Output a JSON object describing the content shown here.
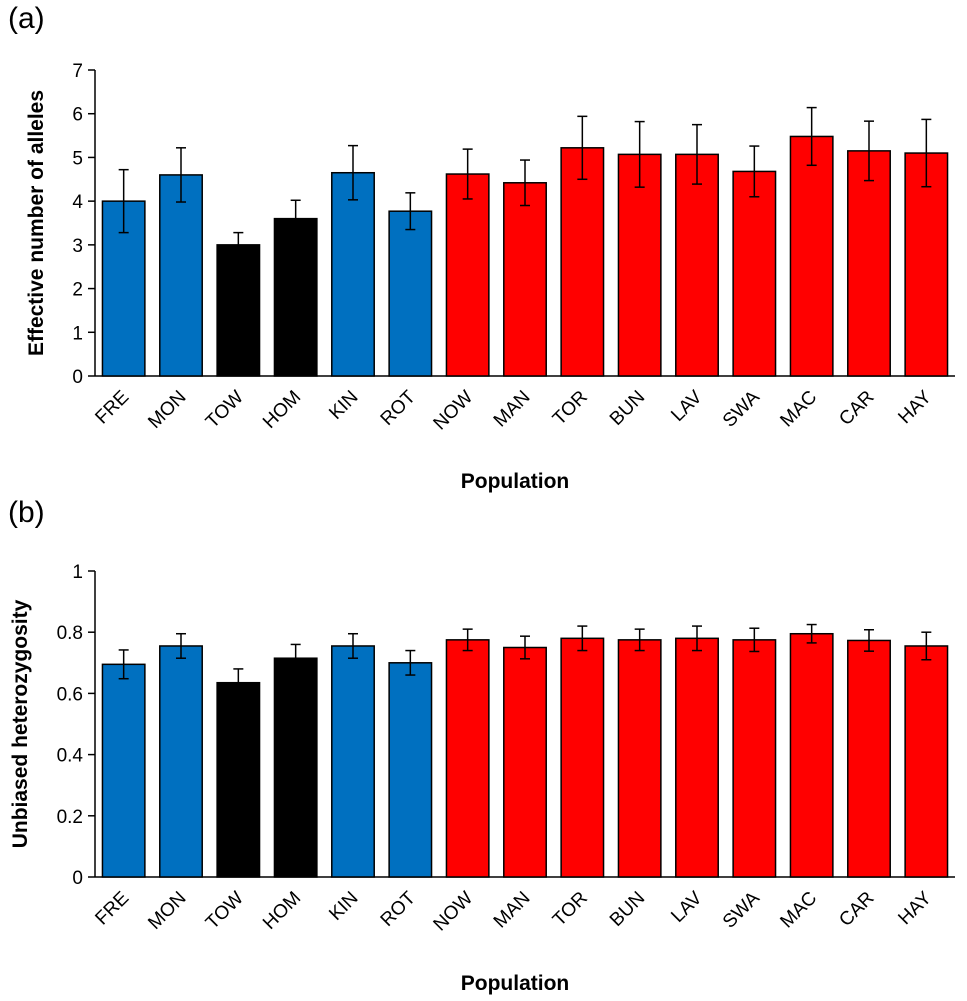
{
  "panels": {
    "a": {
      "label_text": "(a)"
    },
    "b": {
      "label_text": "(b)"
    }
  },
  "colors": {
    "blue": "#0070C0",
    "black": "#000000",
    "red": "#FF0000"
  },
  "chart_data": [
    {
      "type": "bar",
      "panel": "(a)",
      "categories": [
        "FRE",
        "MON",
        "TOW",
        "HOM",
        "KIN",
        "ROT",
        "NOW",
        "MAN",
        "TOR",
        "BUN",
        "LAV",
        "SWA",
        "MAC",
        "CAR",
        "HAY"
      ],
      "values": [
        4.0,
        4.6,
        3.0,
        3.6,
        4.65,
        3.77,
        4.62,
        4.42,
        5.22,
        5.07,
        5.07,
        4.68,
        5.48,
        5.15,
        5.1
      ],
      "errors": [
        0.72,
        0.62,
        0.28,
        0.42,
        0.62,
        0.42,
        0.57,
        0.52,
        0.72,
        0.75,
        0.68,
        0.58,
        0.66,
        0.68,
        0.77
      ],
      "bar_colors": [
        "blue",
        "blue",
        "black",
        "black",
        "blue",
        "blue",
        "red",
        "red",
        "red",
        "red",
        "red",
        "red",
        "red",
        "red",
        "red"
      ],
      "title": "",
      "xlabel": "Population",
      "ylabel": "Effective number of alleles",
      "ylim": [
        0,
        7
      ],
      "yticks": [
        "0",
        "1",
        "2",
        "3",
        "4",
        "5",
        "6",
        "7"
      ]
    },
    {
      "type": "bar",
      "panel": "(b)",
      "categories": [
        "FRE",
        "MON",
        "TOW",
        "HOM",
        "KIN",
        "ROT",
        "NOW",
        "MAN",
        "TOR",
        "BUN",
        "LAV",
        "SWA",
        "MAC",
        "CAR",
        "HAY"
      ],
      "values": [
        0.695,
        0.755,
        0.635,
        0.715,
        0.755,
        0.7,
        0.775,
        0.75,
        0.78,
        0.775,
        0.78,
        0.775,
        0.795,
        0.773,
        0.755
      ],
      "errors": [
        0.047,
        0.04,
        0.045,
        0.045,
        0.04,
        0.04,
        0.035,
        0.037,
        0.04,
        0.035,
        0.04,
        0.038,
        0.03,
        0.035,
        0.045
      ],
      "bar_colors": [
        "blue",
        "blue",
        "black",
        "black",
        "blue",
        "blue",
        "red",
        "red",
        "red",
        "red",
        "red",
        "red",
        "red",
        "red",
        "red"
      ],
      "title": "",
      "xlabel": "Population",
      "ylabel": "Unbiased heterozygosity",
      "ylim": [
        0,
        1
      ],
      "yticks": [
        "0",
        "0.2",
        "0.4",
        "0.6",
        "0.8",
        "1"
      ]
    }
  ]
}
